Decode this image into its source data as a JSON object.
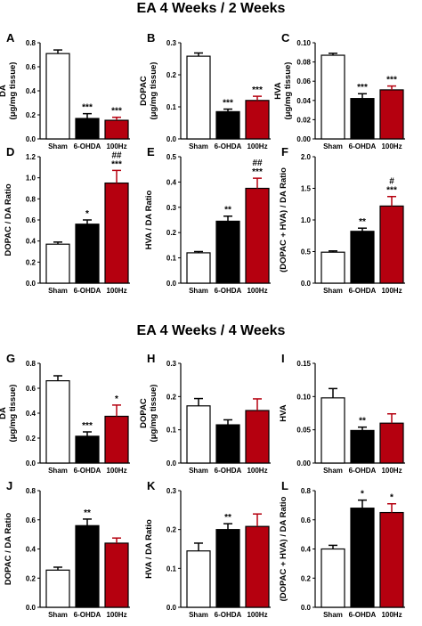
{
  "sections": [
    {
      "title": "EA 4 Weeks / 2 Weeks"
    },
    {
      "title": "EA 4 Weeks / 4 Weeks"
    }
  ],
  "colors": {
    "sham": "#ffffff",
    "ohda": "#000000",
    "hz100": "#b5000f"
  },
  "chart_data": [
    {
      "panel": "A",
      "type": "bar",
      "categories": [
        "Sham",
        "6-OHDA",
        "100Hz"
      ],
      "values": [
        0.71,
        0.17,
        0.155
      ],
      "errors": [
        0.03,
        0.04,
        0.025
      ],
      "ylabel": [
        "DA",
        "(μg/mg tissue)"
      ],
      "ylim": [
        0,
        0.8
      ],
      "yticks": [
        "0.0",
        "0.2",
        "0.4",
        "0.6",
        "0.8"
      ],
      "yticks_values": [
        0,
        0.2,
        0.4,
        0.6,
        0.8
      ],
      "annotations": [
        "",
        "***",
        "***"
      ]
    },
    {
      "panel": "B",
      "type": "bar",
      "categories": [
        "Sham",
        "6-OHDA",
        "100Hz"
      ],
      "values": [
        0.258,
        0.085,
        0.12
      ],
      "errors": [
        0.01,
        0.008,
        0.013
      ],
      "ylabel": [
        "DOPAC",
        "(μg/mg tissue)"
      ],
      "ylim": [
        0,
        0.3
      ],
      "yticks": [
        "0.0",
        "0.1",
        "0.2",
        "0.3"
      ],
      "yticks_values": [
        0,
        0.1,
        0.2,
        0.3
      ],
      "annotations": [
        "",
        "***",
        "***"
      ]
    },
    {
      "panel": "C",
      "type": "bar",
      "categories": [
        "Sham",
        "6-OHDA",
        "100Hz"
      ],
      "values": [
        0.087,
        0.042,
        0.051
      ],
      "errors": [
        0.002,
        0.005,
        0.004
      ],
      "ylabel": [
        "HVA",
        "(μg/mg tissue)"
      ],
      "ylim": [
        0,
        0.1
      ],
      "yticks": [
        "0.00",
        "0.02",
        "0.04",
        "0.06",
        "0.08",
        "0.10"
      ],
      "yticks_values": [
        0,
        0.02,
        0.04,
        0.06,
        0.08,
        0.1
      ],
      "annotations": [
        "",
        "***",
        "***"
      ]
    },
    {
      "panel": "D",
      "type": "bar",
      "categories": [
        "Sham",
        "6-OHDA",
        "100Hz"
      ],
      "values": [
        0.37,
        0.56,
        0.95
      ],
      "errors": [
        0.02,
        0.04,
        0.12
      ],
      "ylabel": [
        "DOPAC / DA Ratio"
      ],
      "ylim": [
        0,
        1.2
      ],
      "yticks": [
        "0.0",
        "0.2",
        "0.4",
        "0.6",
        "0.8",
        "1.0",
        "1.2"
      ],
      "yticks_values": [
        0,
        0.2,
        0.4,
        0.6,
        0.8,
        1.0,
        1.2
      ],
      "annotations": [
        "",
        "*",
        "***",
        "##"
      ]
    },
    {
      "panel": "E",
      "type": "bar",
      "categories": [
        "Sham",
        "6-OHDA",
        "100Hz"
      ],
      "values": [
        0.12,
        0.245,
        0.375
      ],
      "errors": [
        0.005,
        0.02,
        0.04
      ],
      "ylabel": [
        "HVA / DA Ratio"
      ],
      "ylim": [
        0,
        0.5
      ],
      "yticks": [
        "0.0",
        "0.1",
        "0.2",
        "0.3",
        "0.4",
        "0.5"
      ],
      "yticks_values": [
        0,
        0.1,
        0.2,
        0.3,
        0.4,
        0.5
      ],
      "annotations": [
        "",
        "**",
        "***",
        "##"
      ]
    },
    {
      "panel": "F",
      "type": "bar",
      "categories": [
        "Sham",
        "6-OHDA",
        "100Hz"
      ],
      "values": [
        0.49,
        0.82,
        1.22
      ],
      "errors": [
        0.02,
        0.05,
        0.15
      ],
      "ylabel": [
        "(DOPAC + HVA) / DA Ratio"
      ],
      "ylim": [
        0,
        2.0
      ],
      "yticks": [
        "0.0",
        "0.5",
        "1.0",
        "1.5",
        "2.0"
      ],
      "yticks_values": [
        0,
        0.5,
        1.0,
        1.5,
        2.0
      ],
      "annotations": [
        "",
        "**",
        "***",
        "#"
      ]
    },
    {
      "panel": "G",
      "type": "bar",
      "categories": [
        "Sham",
        "6-OHDA",
        "100Hz"
      ],
      "values": [
        0.66,
        0.215,
        0.375
      ],
      "errors": [
        0.04,
        0.035,
        0.09
      ],
      "ylabel": [
        "DA",
        "(μg/mg tissue)"
      ],
      "ylim": [
        0,
        0.8
      ],
      "yticks": [
        "0.0",
        "0.2",
        "0.4",
        "0.6",
        "0.8"
      ],
      "yticks_values": [
        0,
        0.2,
        0.4,
        0.6,
        0.8
      ],
      "annotations": [
        "",
        "***",
        "*"
      ]
    },
    {
      "panel": "H",
      "type": "bar",
      "categories": [
        "Sham",
        "6-OHDA",
        "100Hz"
      ],
      "values": [
        0.172,
        0.115,
        0.158
      ],
      "errors": [
        0.022,
        0.015,
        0.035
      ],
      "ylabel": [
        "DOPAC",
        "(μg/mg tissue)"
      ],
      "ylim": [
        0,
        0.3
      ],
      "yticks": [
        "0.0",
        "0.1",
        "0.2",
        "0.3"
      ],
      "yticks_values": [
        0,
        0.1,
        0.2,
        0.3
      ],
      "annotations": [
        "",
        "",
        ""
      ]
    },
    {
      "panel": "I",
      "type": "bar",
      "categories": [
        "Sham",
        "6-OHDA",
        "100Hz"
      ],
      "values": [
        0.098,
        0.049,
        0.06
      ],
      "errors": [
        0.014,
        0.005,
        0.014
      ],
      "ylabel": [
        "HVA"
      ],
      "ylim": [
        0,
        0.15
      ],
      "yticks": [
        "0.00",
        "0.05",
        "0.10",
        "0.15"
      ],
      "yticks_values": [
        0,
        0.05,
        0.1,
        0.15
      ],
      "annotations": [
        "",
        "**",
        ""
      ]
    },
    {
      "panel": "J",
      "type": "bar",
      "categories": [
        "Sham",
        "6-OHDA",
        "100Hz"
      ],
      "values": [
        0.255,
        0.56,
        0.44
      ],
      "errors": [
        0.02,
        0.045,
        0.035
      ],
      "ylabel": [
        "DOPAC / DA Ratio"
      ],
      "ylim": [
        0,
        0.8
      ],
      "yticks": [
        "0.0",
        "0.2",
        "0.4",
        "0.6",
        "0.8"
      ],
      "yticks_values": [
        0,
        0.2,
        0.4,
        0.6,
        0.8
      ],
      "annotations": [
        "",
        "**",
        ""
      ]
    },
    {
      "panel": "K",
      "type": "bar",
      "categories": [
        "Sham",
        "6-OHDA",
        "100Hz"
      ],
      "values": [
        0.145,
        0.2,
        0.208
      ],
      "errors": [
        0.02,
        0.015,
        0.032
      ],
      "ylabel": [
        "HVA / DA Ratio"
      ],
      "ylim": [
        0,
        0.3
      ],
      "yticks": [
        "0.0",
        "0.1",
        "0.2",
        "0.3"
      ],
      "yticks_values": [
        0,
        0.1,
        0.2,
        0.3
      ],
      "annotations": [
        "",
        "**",
        ""
      ]
    },
    {
      "panel": "L",
      "type": "bar",
      "categories": [
        "Sham",
        "6-OHDA",
        "100Hz"
      ],
      "values": [
        0.4,
        0.68,
        0.65
      ],
      "errors": [
        0.025,
        0.055,
        0.06
      ],
      "ylabel": [
        "(DOPAC + HVA) / DA Ratio"
      ],
      "ylim": [
        0,
        0.8
      ],
      "yticks": [
        "0.0",
        "0.2",
        "0.4",
        "0.6",
        "0.8"
      ],
      "yticks_values": [
        0,
        0.2,
        0.4,
        0.6,
        0.8
      ],
      "annotations": [
        "",
        "*",
        "*"
      ]
    }
  ]
}
